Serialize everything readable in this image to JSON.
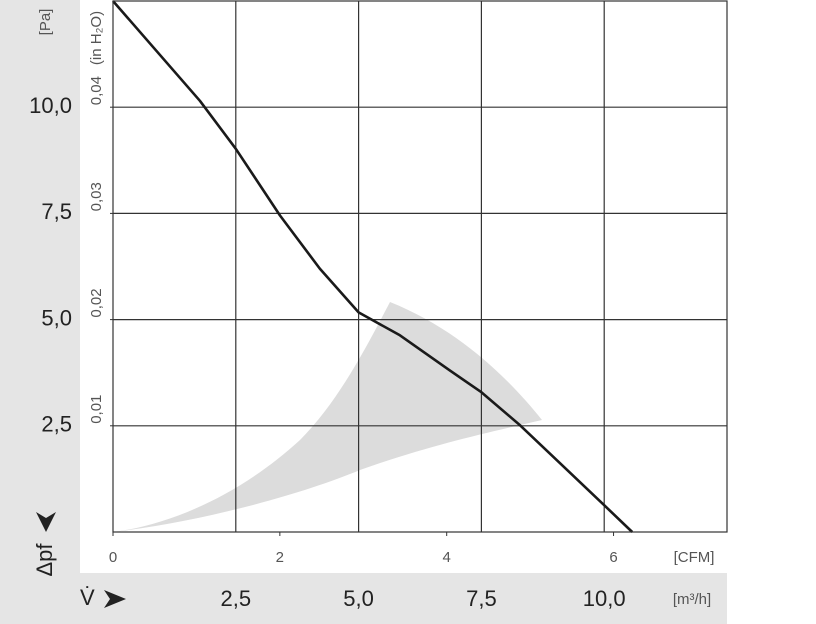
{
  "chart_data": {
    "type": "line",
    "y_label": "Δpf",
    "x_label": "V̇",
    "y_unit": "[Pa]",
    "y2_unit": "(in H₂O)",
    "x_unit": "[m³/h]",
    "x2_unit": "[CFM]",
    "x": [
      0,
      1.77,
      2.5,
      3.4,
      4.21,
      5.0,
      5.84,
      6.86,
      7.5,
      8.29,
      9.1,
      10.0,
      10.57
    ],
    "values": [
      12.5,
      10.15,
      9.02,
      7.45,
      6.2,
      5.17,
      4.63,
      3.8,
      3.29,
      2.51,
      1.62,
      0.63,
      0
    ],
    "color": "#1a1a1a",
    "xlim": [
      0,
      12.5
    ],
    "ylim": [
      0,
      12.5
    ],
    "xticks": [
      {
        "value": 2.5,
        "label": "2,5"
      },
      {
        "value": 5,
        "label": "5,0"
      },
      {
        "value": 7.5,
        "label": "7,5"
      },
      {
        "value": 10,
        "label": "10,0"
      }
    ],
    "yticks": [
      {
        "value": 2.5,
        "label": "2,5"
      },
      {
        "value": 5,
        "label": "5,0"
      },
      {
        "value": 7.5,
        "label": "7,5"
      },
      {
        "value": 10,
        "label": "10,0"
      }
    ],
    "x2lim": [
      0,
      7.36
    ],
    "x2ticks": [
      0,
      2,
      4,
      6
    ],
    "y2lim": [
      0,
      0.05
    ],
    "y2ticks": [
      {
        "value": 0.01,
        "label": "0,01"
      },
      {
        "value": 0.02,
        "label": "0,02"
      },
      {
        "value": 0.03,
        "label": "0,03"
      },
      {
        "value": 0.04,
        "label": "0,04"
      }
    ],
    "grid": true
  }
}
